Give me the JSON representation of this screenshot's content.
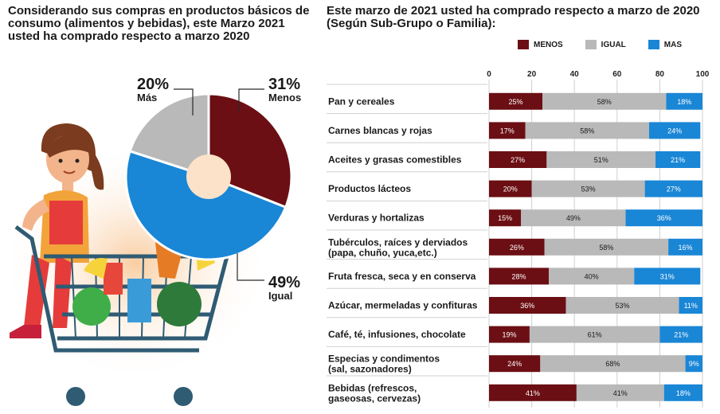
{
  "left": {
    "title": "Considerando sus compras en productos básicos de consumo (alimentos y bebidas), este Marzo 2021 usted ha comprado respecto a marzo 2020"
  },
  "right": {
    "title": "Este marzo de 2021 usted ha comprado respecto a marzo de 2020 (Según Sub-Grupo o Familia):"
  },
  "colors": {
    "menos": "#6b0f14",
    "igual": "#b9b9b9",
    "mas": "#1a86d6"
  },
  "chart_data": [
    {
      "type": "pie",
      "slices": [
        {
          "name": "Menos",
          "pct_label": "31%",
          "value": 31,
          "color": "#6b0f14"
        },
        {
          "name": "Igual",
          "pct_label": "49%",
          "value": 49,
          "color": "#1a86d6"
        },
        {
          "name": "Más",
          "pct_label": "20%",
          "value": 20,
          "color": "#b9b9b9"
        }
      ]
    },
    {
      "type": "bar",
      "stacked": true,
      "orientation": "horizontal",
      "xlim": [
        0,
        100
      ],
      "xticks": [
        "0",
        "20",
        "40",
        "60",
        "80",
        "100"
      ],
      "legend": [
        "MENOS",
        "IGUAL",
        "MAS"
      ],
      "legend_position": "top",
      "categories": [
        [
          "Pan y cereales"
        ],
        [
          "Carnes blancas y rojas"
        ],
        [
          "Aceites y grasas comestibles"
        ],
        [
          "Productos lácteos"
        ],
        [
          "Verduras y hortalizas"
        ],
        [
          "Tubérculos, raíces y derviados",
          "(papa, chuño, yuca,etc.)"
        ],
        [
          "Fruta fresca, seca y en conserva"
        ],
        [
          "Azúcar, mermeladas y confituras"
        ],
        [
          "Café, té, infusiones, chocolate"
        ],
        [
          "Especias y condimentos",
          "(sal, sazonadores)"
        ],
        [
          "Bebidas (refrescos,",
          "gaseosas, cervezas)"
        ]
      ],
      "series": [
        {
          "name": "MENOS",
          "values": [
            25,
            17,
            27,
            20,
            15,
            26,
            28,
            36,
            19,
            24,
            41
          ],
          "labels": [
            "25%",
            "17%",
            "27%",
            "20%",
            "15%",
            "26%",
            "28%",
            "36%",
            "19%",
            "24%",
            "41%"
          ]
        },
        {
          "name": "IGUAL",
          "values": [
            58,
            58,
            51,
            53,
            49,
            58,
            40,
            53,
            61,
            68,
            41
          ],
          "labels": [
            "58%",
            "58%",
            "51%",
            "53%",
            "49%",
            "58%",
            "40%",
            "53%",
            "61%",
            "68%",
            "41%"
          ]
        },
        {
          "name": "MAS",
          "values": [
            18,
            24,
            21,
            27,
            36,
            16,
            31,
            11,
            21,
            9,
            18
          ],
          "labels": [
            "18%",
            "24%",
            "21%",
            "27%",
            "36%",
            "16%",
            "31%",
            "11%",
            "21%",
            "9%",
            "18%"
          ]
        }
      ]
    }
  ]
}
